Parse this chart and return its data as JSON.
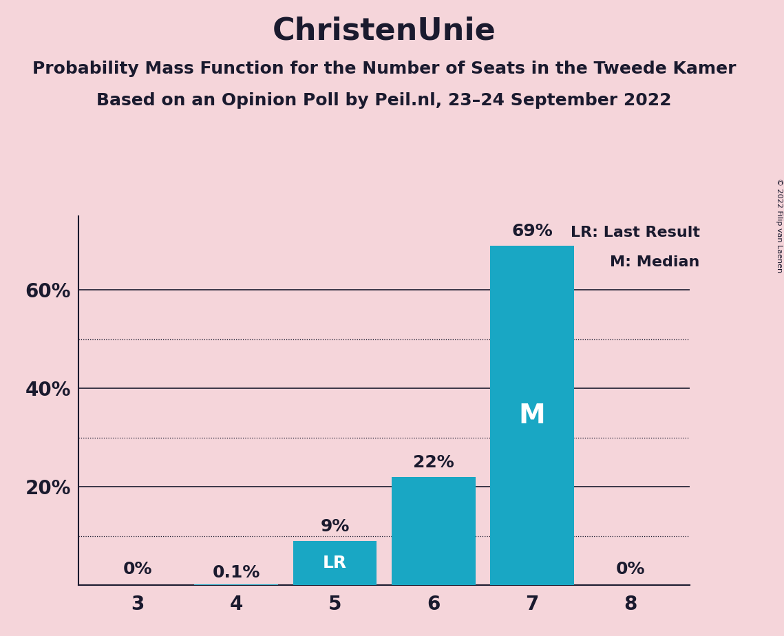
{
  "title": "ChristenUnie",
  "subtitle1": "Probability Mass Function for the Number of Seats in the Tweede Kamer",
  "subtitle2": "Based on an Opinion Poll by Peil.nl, 23–24 September 2022",
  "copyright": "© 2022 Filip van Laenen",
  "seats": [
    3,
    4,
    5,
    6,
    7,
    8
  ],
  "values": [
    0.0,
    0.1,
    9.0,
    22.0,
    69.0,
    0.0
  ],
  "bar_color": "#19a7c4",
  "background_color": "#f5d5da",
  "label_above": [
    "0%",
    "0.1%",
    "9%",
    "22%",
    "69%",
    "0%"
  ],
  "lr_index": 2,
  "median_index": 4,
  "solid_grid": [
    20,
    40,
    60
  ],
  "dotted_grid": [
    10,
    30,
    50
  ],
  "ylim": [
    0,
    75
  ],
  "legend_lr": "LR: Last Result",
  "legend_m": "M: Median",
  "title_fontsize": 32,
  "subtitle_fontsize": 18,
  "label_fontsize": 18,
  "tick_fontsize": 20,
  "inside_label_fontsize": 18,
  "m_label_fontsize": 28
}
